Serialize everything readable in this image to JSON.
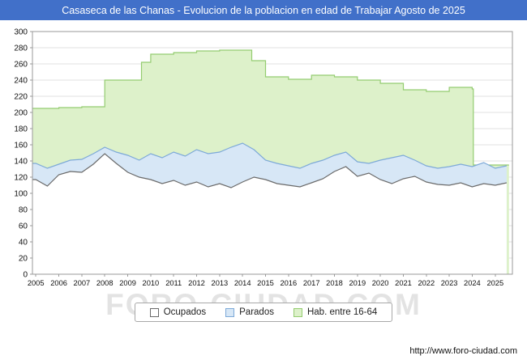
{
  "title_bar": {
    "text": "Casaseca de las Chanas - Evolucion de la poblacion en edad de Trabajar Agosto de 2025",
    "bg": "#4170c9",
    "fg": "#ffffff"
  },
  "watermark": "FORO-CIUDAD.COM",
  "footer": {
    "url": "http://www.foro-ciudad.com"
  },
  "legend": {
    "items": [
      {
        "label": "Ocupados",
        "fill": "#ffffff",
        "stroke": "#6a6a6a"
      },
      {
        "label": "Parados",
        "fill": "#d7e7f6",
        "stroke": "#7da9d8"
      },
      {
        "label": "Hab. entre 16-64",
        "fill": "#ddf1ca",
        "stroke": "#94cc70"
      }
    ]
  },
  "chart_data": {
    "type": "area",
    "title": "Casaseca de las Chanas - Evolucion de la poblacion en edad de Trabajar Agosto de 2025",
    "xlabel": "",
    "ylabel": "",
    "xlim": [
      2004.85,
      2025.75
    ],
    "ylim": [
      0,
      300
    ],
    "x_ticks": [
      2005,
      2006,
      2007,
      2008,
      2009,
      2010,
      2011,
      2012,
      2013,
      2014,
      2015,
      2016,
      2017,
      2018,
      2019,
      2020,
      2021,
      2022,
      2023,
      2024,
      2025
    ],
    "y_ticks": [
      0,
      20,
      40,
      60,
      80,
      100,
      120,
      140,
      160,
      180,
      200,
      220,
      240,
      260,
      280,
      300
    ],
    "grid": "horizontal",
    "legend_position": "bottom",
    "x": [
      2005,
      2005.5,
      2006,
      2006.5,
      2007,
      2007.5,
      2008,
      2008.5,
      2009,
      2009.5,
      2010,
      2010.5,
      2011,
      2011.5,
      2012,
      2012.5,
      2013,
      2013.5,
      2014,
      2014.5,
      2015,
      2015.5,
      2016,
      2016.5,
      2017,
      2017.5,
      2018,
      2018.5,
      2019,
      2019.5,
      2020,
      2020.5,
      2021,
      2021.5,
      2022,
      2022.5,
      2023,
      2023.5,
      2024,
      2024.5,
      2025,
      2025.5
    ],
    "series": [
      {
        "name": "Ocupados",
        "type": "area",
        "fill": "#ffffff",
        "stroke": "#6a6a6a",
        "values": [
          117,
          109,
          123,
          127,
          126,
          136,
          149,
          137,
          126,
          120,
          117,
          112,
          116,
          110,
          114,
          108,
          112,
          107,
          114,
          120,
          117,
          112,
          110,
          108,
          113,
          118,
          127,
          133,
          121,
          125,
          117,
          112,
          118,
          121,
          114,
          111,
          110,
          113,
          108,
          112,
          110,
          113
        ]
      },
      {
        "name": "Parados",
        "type": "area",
        "stacked_on": "Ocupados",
        "fill": "#d7e7f6",
        "stroke": "#7da9d8",
        "values": [
          20,
          22,
          13,
          14,
          16,
          13,
          8,
          14,
          21,
          21,
          32,
          32,
          35,
          36,
          40,
          41,
          39,
          50,
          48,
          34,
          24,
          25,
          24,
          23,
          24,
          23,
          20,
          18,
          18,
          12,
          24,
          32,
          29,
          20,
          20,
          20,
          23,
          23,
          25,
          26,
          21,
          21
        ]
      },
      {
        "name": "Hab. entre 16-64",
        "type": "step-area",
        "fill": "#ddf1ca",
        "stroke": "#94cc70",
        "points": [
          [
            2005,
            205
          ],
          [
            2006,
            206
          ],
          [
            2007,
            207
          ],
          [
            2008,
            240
          ],
          [
            2009,
            240
          ],
          [
            2009.6,
            262
          ],
          [
            2010,
            272
          ],
          [
            2011,
            274
          ],
          [
            2012,
            276
          ],
          [
            2013,
            277
          ],
          [
            2014.4,
            264
          ],
          [
            2015,
            244
          ],
          [
            2016,
            241
          ],
          [
            2017,
            246
          ],
          [
            2018,
            244
          ],
          [
            2019,
            240
          ],
          [
            2020,
            236
          ],
          [
            2021,
            228
          ],
          [
            2022,
            226
          ],
          [
            2023,
            231
          ],
          [
            2024,
            229
          ],
          [
            2024.05,
            135
          ],
          [
            2025.6,
            135
          ]
        ]
      }
    ]
  }
}
